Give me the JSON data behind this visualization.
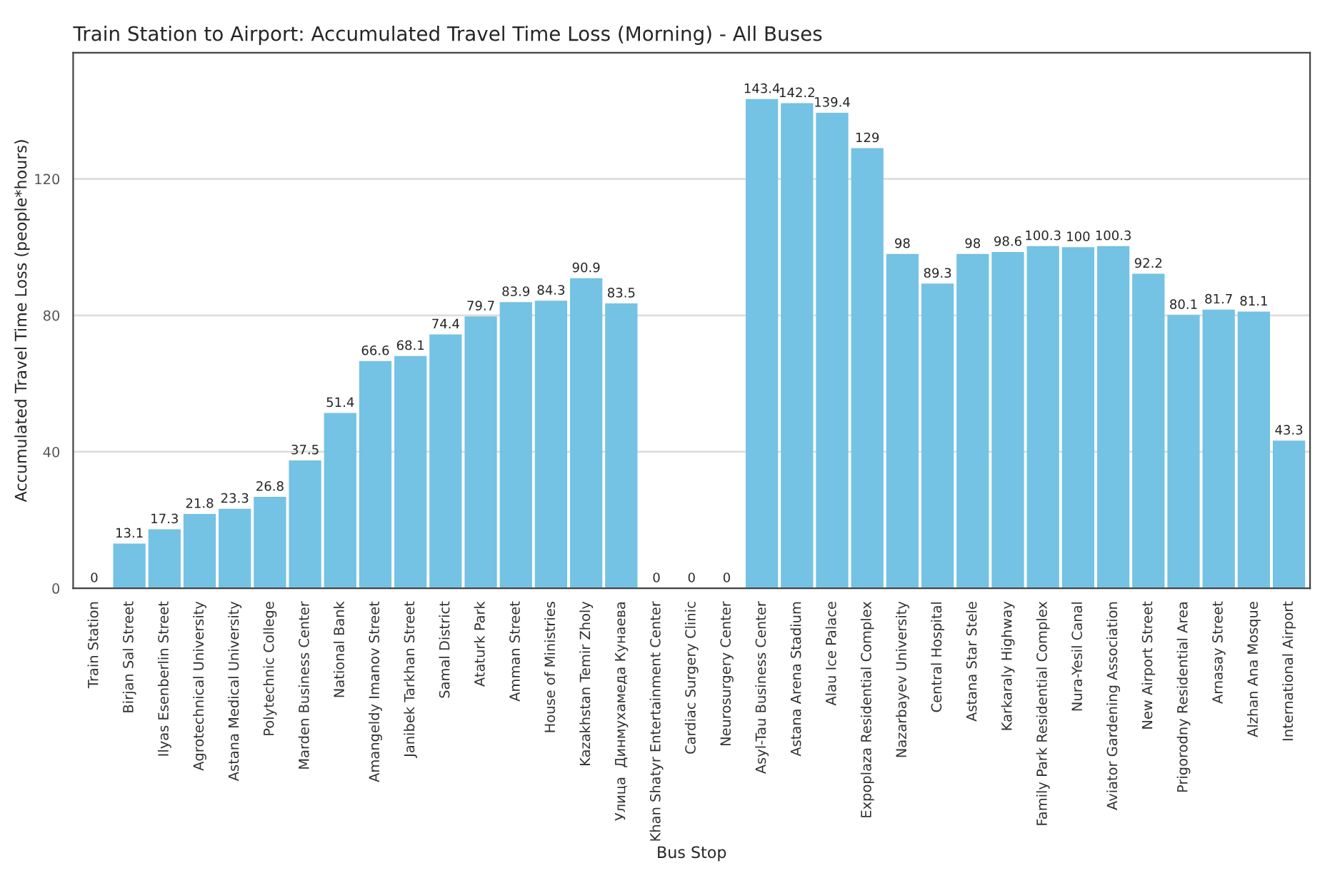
{
  "chart_data": {
    "type": "bar",
    "title": "Train Station to Airport: Accumulated Travel Time Loss (Morning) - All Buses",
    "xlabel": "Bus Stop",
    "ylabel": "Accumulated Travel Time Loss (people*hours)",
    "categories": [
      "Train Station",
      "Birjan Sal Street",
      "Ilyas Esenberlin Street",
      "Agrotechnical University",
      "Astana Medical University",
      "Polytechnic College",
      "Marden Business Center",
      "National Bank",
      "Amangeldy Imanov Street",
      "Janibek Tarkhan Street",
      "Samal District",
      "Ataturk Park",
      "Amman Street",
      "House of Ministries",
      "Kazakhstan Temir Zholy",
      "Улица  Динмухамеда Кунаева",
      "Khan Shatyr Entertainment Center",
      "Cardiac Surgery Clinic",
      "Neurosurgery Center",
      "Asyl-Tau Business Center",
      "Astana Arena Stadium",
      "Alau Ice Palace",
      "Expoplaza Residential Complex",
      "Nazarbayev University",
      "Central Hospital",
      "Astana Star Stele",
      "Karkaraly Highway",
      "Family Park Residential Complex",
      "Nura-Yesil Canal",
      "Aviator Gardening Association",
      "New Airport Street",
      "Prigorodny Residential Area",
      "Arnasay Street",
      "Alzhan Ana Mosque",
      "International Airport"
    ],
    "values": [
      0,
      13.1,
      17.3,
      21.8,
      23.3,
      26.8,
      37.5,
      51.4,
      66.6,
      68.1,
      74.4,
      79.7,
      83.9,
      84.3,
      90.9,
      83.5,
      0,
      0,
      0,
      143.4,
      142.2,
      139.4,
      129,
      98,
      89.3,
      98,
      98.6,
      100.3,
      100,
      100.3,
      92.2,
      80.1,
      81.7,
      81.1,
      43.3
    ],
    "color": "#74c2e4",
    "data_labels": true,
    "ylim": [
      0,
      157
    ],
    "yticks": [
      0,
      40,
      80,
      120
    ],
    "grid": "y"
  }
}
